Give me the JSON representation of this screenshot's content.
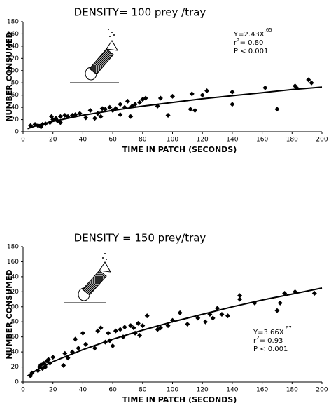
{
  "chart_data": [
    {
      "type": "scatter",
      "title": "DENSITY= 100 prey /tray",
      "xlabel": "TIME IN PATCH (SECONDS)",
      "ylabel": "NUMBER CONSUMED",
      "equation": {
        "text": "Y=2.43X",
        "exponent": ".65"
      },
      "r2": {
        "text": "r",
        "exponent": "2",
        "value": "= 0.80"
      },
      "p_value": "P < 0.001",
      "xlim": [
        0,
        200
      ],
      "xticks": [
        0,
        20,
        40,
        60,
        80,
        100,
        120,
        140,
        160,
        180,
        200
      ],
      "ylim": [
        0,
        180
      ],
      "yticks": [
        0,
        20,
        40,
        60,
        80,
        100,
        120,
        140,
        160,
        180
      ],
      "series": [
        {
          "color": "#000000",
          "marker": "diamond",
          "x": [
            5,
            8,
            10,
            12,
            13,
            15,
            18,
            19,
            20,
            22,
            23,
            25,
            25,
            28,
            30,
            33,
            35,
            38,
            42,
            45,
            48,
            50,
            52,
            53,
            55,
            58,
            60,
            62,
            65,
            65,
            68,
            70,
            72,
            73,
            75,
            78,
            80,
            82,
            90,
            92,
            97,
            100,
            112,
            113,
            115,
            120,
            123,
            140,
            140,
            162,
            170,
            182,
            183,
            191,
            193
          ],
          "values": [
            10,
            12,
            10,
            8,
            12,
            13,
            15,
            25,
            20,
            22,
            18,
            15,
            25,
            27,
            25,
            27,
            28,
            30,
            23,
            35,
            22,
            30,
            25,
            38,
            37,
            40,
            35,
            38,
            45,
            28,
            40,
            50,
            25,
            42,
            45,
            48,
            53,
            55,
            42,
            55,
            27,
            58,
            37,
            62,
            35,
            60,
            67,
            45,
            65,
            72,
            37,
            75,
            72,
            85,
            80
          ]
        },
        {
          "color": "#000000",
          "line": true,
          "x": [
            3,
            10,
            20,
            40,
            60,
            80,
            100,
            120,
            140,
            160,
            180,
            200
          ],
          "values": [
            5,
            11,
            17,
            27,
            35,
            42,
            48,
            54,
            59,
            64,
            69,
            73
          ]
        }
      ]
    },
    {
      "type": "scatter",
      "title": "DENSITY = 150 prey/tray",
      "xlabel": "TIME IN PATCH (SECONDS)",
      "ylabel": "NUMBER CONSUMED",
      "equation": {
        "text": "Y=3.66X",
        "exponent": ".67"
      },
      "r2": {
        "text": "r",
        "exponent": "2",
        "value": "= 0.93"
      },
      "p_value": "P < 0.001",
      "xlim": [
        0,
        200
      ],
      "xticks": [
        0,
        20,
        40,
        60,
        80,
        100,
        120,
        140,
        160,
        180,
        200
      ],
      "ylim": [
        0,
        180
      ],
      "yticks": [
        0,
        20,
        40,
        60,
        80,
        100,
        120,
        140,
        160,
        180
      ],
      "series": [
        {
          "color": "#000000",
          "marker": "diamond",
          "x": [
            5,
            6,
            10,
            11,
            12,
            13,
            14,
            15,
            16,
            17,
            18,
            20,
            27,
            28,
            30,
            33,
            35,
            37,
            40,
            42,
            48,
            50,
            52,
            55,
            57,
            58,
            60,
            62,
            65,
            67,
            68,
            72,
            74,
            75,
            77,
            78,
            80,
            83,
            90,
            92,
            97,
            100,
            105,
            110,
            117,
            122,
            125,
            127,
            130,
            133,
            137,
            145,
            145,
            155,
            170,
            172,
            175,
            182,
            195
          ],
          "values": [
            8,
            12,
            15,
            20,
            23,
            18,
            25,
            20,
            28,
            30,
            25,
            33,
            22,
            38,
            32,
            40,
            57,
            45,
            65,
            50,
            45,
            68,
            72,
            53,
            65,
            55,
            48,
            68,
            70,
            60,
            73,
            75,
            72,
            65,
            78,
            62,
            75,
            88,
            70,
            72,
            75,
            82,
            92,
            77,
            85,
            80,
            90,
            85,
            98,
            90,
            88,
            115,
            110,
            105,
            95,
            105,
            118,
            120,
            118
          ]
        },
        {
          "color": "#000000",
          "line": true,
          "x": [
            3,
            10,
            20,
            40,
            60,
            80,
            100,
            120,
            140,
            160,
            180,
            200
          ],
          "values": [
            8,
            17,
            27,
            43,
            57,
            69,
            80,
            90,
            100,
            109,
            117,
            125
          ]
        }
      ]
    }
  ]
}
